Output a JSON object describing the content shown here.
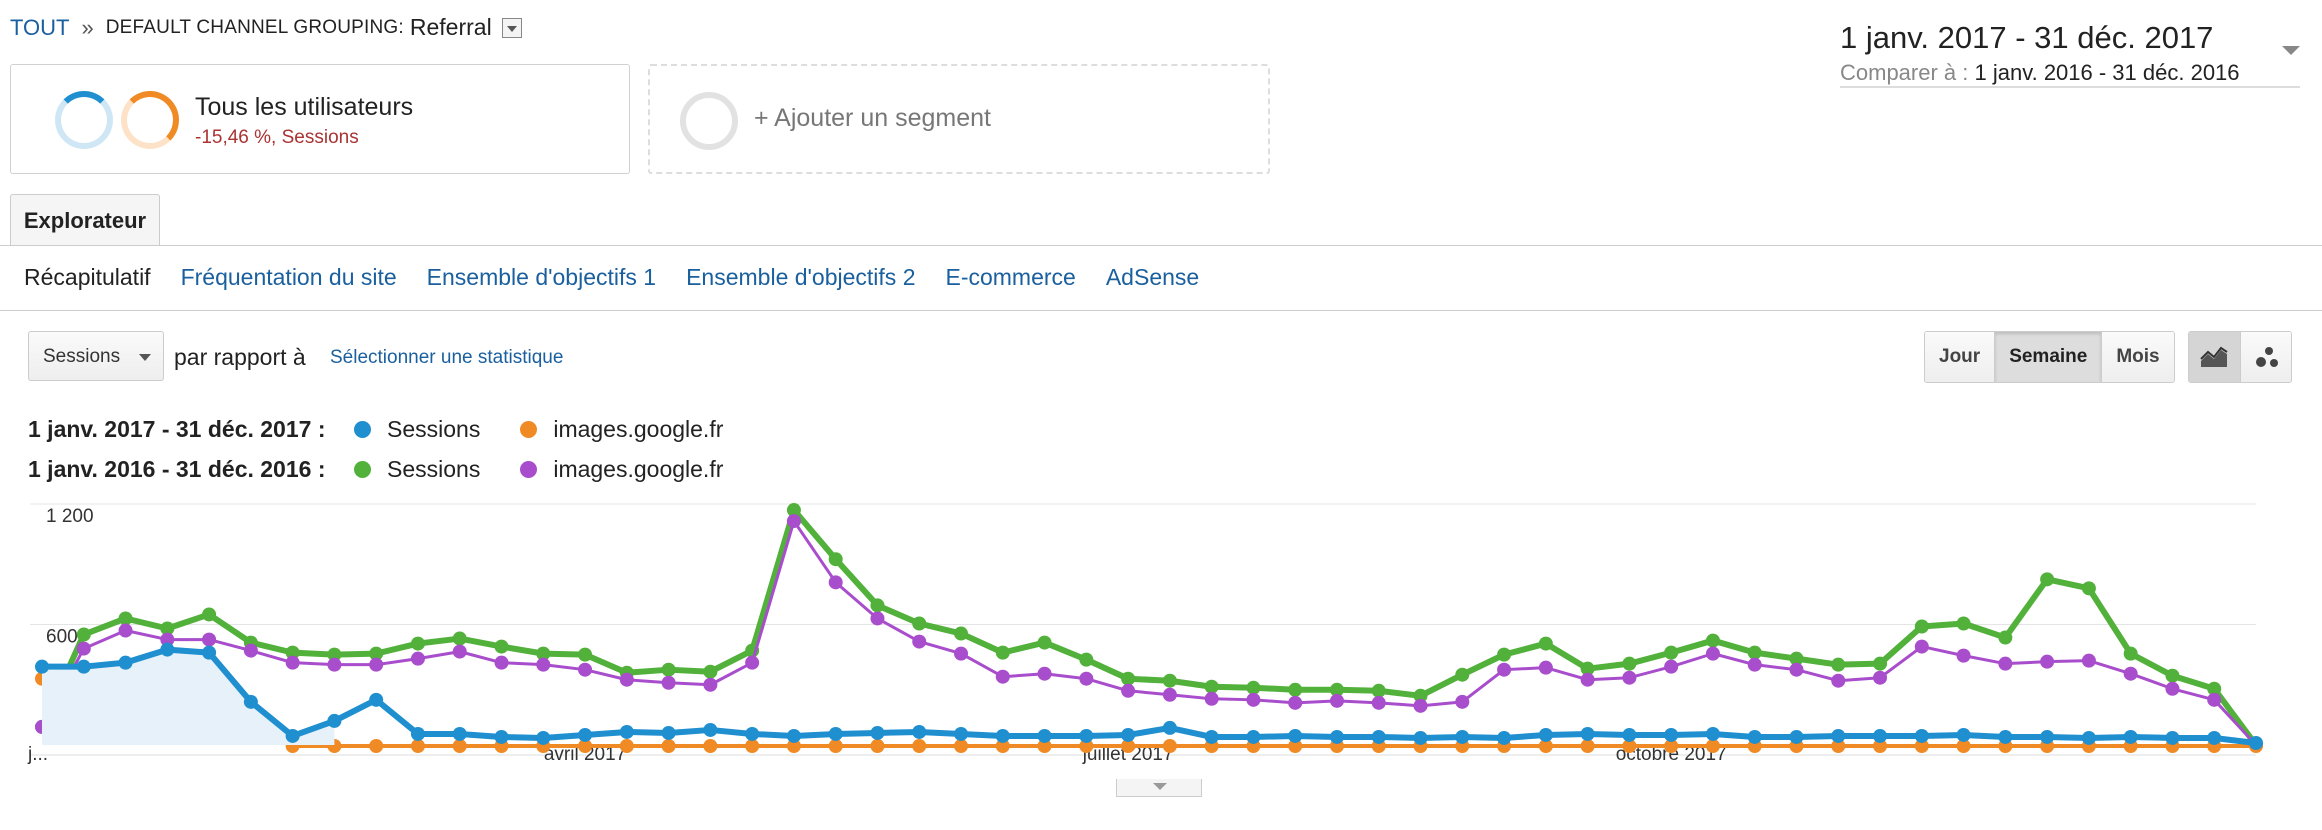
{
  "breadcrumb": {
    "root": "TOUT",
    "separator": "»",
    "grouping": "DEFAULT CHANNEL GROUPING:",
    "value": "Referral"
  },
  "date_range": {
    "main": "1 janv. 2017 - 31 déc. 2017",
    "compare_label": "Comparer à :",
    "compare_value": "1 janv. 2016 - 31 déc. 2016"
  },
  "segments": {
    "all_users": {
      "title": "Tous les utilisateurs",
      "subtitle": "-15,46 %, Sessions"
    },
    "add": {
      "label": "+ Ajouter un segment"
    }
  },
  "tabs": {
    "explorer": "Explorateur"
  },
  "subnav": [
    "Récapitulatif",
    "Fréquentation du site",
    "Ensemble d'objectifs 1",
    "Ensemble d'objectifs 2",
    "E-commerce",
    "AdSense"
  ],
  "controls": {
    "metric": "Sessions",
    "vs": "par rapport à",
    "select_stat": "Sélectionner une statistique",
    "periods": [
      "Jour",
      "Semaine",
      "Mois"
    ],
    "active_period": "Semaine",
    "view_icons": [
      "line-chart-icon",
      "motion-chart-icon"
    ]
  },
  "legend": [
    {
      "range": "1 janv. 2017 - 31 déc. 2017 :",
      "items": [
        {
          "name": "Sessions",
          "color": "#1f8fd0"
        },
        {
          "name": "images.google.fr",
          "color": "#f08a24"
        }
      ]
    },
    {
      "range": "1 janv. 2016 - 31 déc. 2016 :",
      "items": [
        {
          "name": "Sessions",
          "color": "#52b13a"
        },
        {
          "name": "images.google.fr",
          "color": "#a84dcc"
        }
      ]
    }
  ],
  "chart_data": {
    "type": "line",
    "ylim": [
      0,
      1200
    ],
    "y_ticks": [
      {
        "value": 1200,
        "label": "1 200"
      },
      {
        "value": 600,
        "label": "600"
      }
    ],
    "x_labels": [
      {
        "index": 0,
        "label": "j..."
      },
      {
        "index": 13,
        "label": "avril 2017"
      },
      {
        "index": 26,
        "label": "juillet 2017"
      },
      {
        "index": 39,
        "label": "octobre 2017"
      }
    ],
    "grid": true,
    "series": [
      {
        "name": "Sessions",
        "period": "2017",
        "color": "#1f8fd0",
        "fill": true,
        "values": [
          390,
          390,
          410,
          475,
          460,
          215,
          45,
          120,
          225,
          55,
          55,
          40,
          35,
          50,
          65,
          60,
          75,
          55,
          45,
          55,
          60,
          65,
          55,
          45,
          45,
          45,
          50,
          85,
          40,
          40,
          45,
          40,
          40,
          35,
          40,
          35,
          50,
          55,
          50,
          50,
          55,
          40,
          40,
          45,
          45,
          45,
          50,
          40,
          40,
          35,
          40,
          35,
          35,
          10
        ]
      },
      {
        "name": "images.google.fr",
        "period": "2017",
        "color": "#f08a24",
        "values": [
          330,
          345,
          350,
          340,
          405,
          155,
          -5,
          -5,
          -5,
          -5,
          -5,
          -5,
          -5,
          -5,
          -5,
          -5,
          -5,
          -5,
          -5,
          -5,
          -5,
          -5,
          -5,
          -5,
          -5,
          -5,
          -5,
          -5,
          -5,
          -5,
          -5,
          -5,
          -5,
          -5,
          -5,
          -5,
          -5,
          -5,
          -5,
          -5,
          -5,
          -5,
          -5,
          -5,
          -5,
          -5,
          -5,
          -5,
          -5,
          -5,
          -5,
          -5,
          -5,
          -5
        ]
      },
      {
        "name": "Sessions",
        "period": "2016",
        "color": "#52b13a",
        "values": [
          90,
          550,
          630,
          580,
          650,
          510,
          460,
          450,
          455,
          505,
          530,
          490,
          455,
          450,
          360,
          375,
          365,
          470,
          1170,
          925,
          695,
          605,
          555,
          460,
          510,
          425,
          330,
          320,
          290,
          285,
          275,
          275,
          270,
          245,
          350,
          450,
          505,
          380,
          405,
          460,
          520,
          460,
          430,
          400,
          405,
          590,
          605,
          535,
          825,
          780,
          455,
          345,
          280,
          0
        ]
      },
      {
        "name": "images.google.fr",
        "period": "2016",
        "color": "#a84dcc",
        "values": [
          90,
          480,
          570,
          525,
          525,
          470,
          410,
          400,
          400,
          430,
          465,
          410,
          400,
          375,
          325,
          310,
          300,
          410,
          1115,
          810,
          630,
          515,
          455,
          340,
          355,
          330,
          270,
          250,
          230,
          225,
          210,
          220,
          210,
          195,
          215,
          375,
          385,
          325,
          335,
          390,
          455,
          400,
          375,
          320,
          335,
          490,
          445,
          405,
          415,
          420,
          355,
          280,
          225,
          0
        ]
      }
    ]
  }
}
